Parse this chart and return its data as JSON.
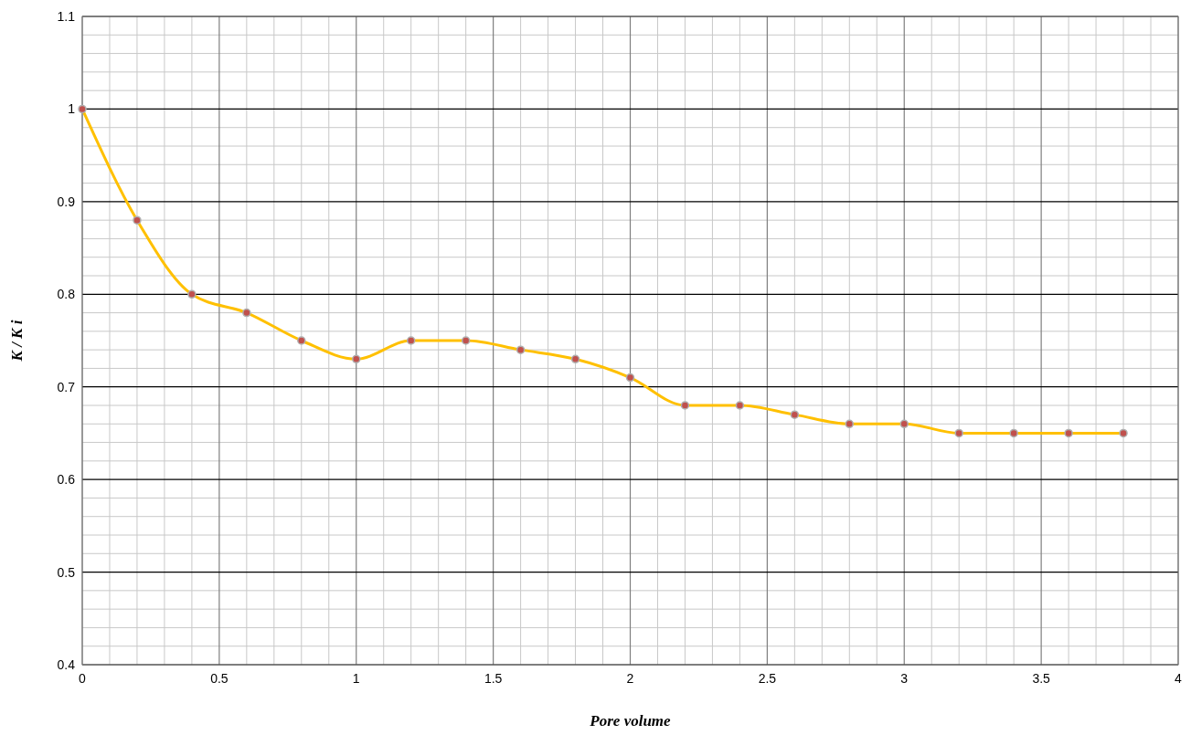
{
  "chart_data": {
    "type": "line",
    "xlabel": "Pore volume",
    "ylabel": "K / K i",
    "x": [
      0,
      0.2,
      0.4,
      0.6,
      0.8,
      1.0,
      1.2,
      1.4,
      1.6,
      1.8,
      2.0,
      2.2,
      2.4,
      2.6,
      2.8,
      3.0,
      3.2,
      3.4,
      3.6,
      3.8
    ],
    "series": [
      {
        "color": "#ffc000",
        "values": [
          1.0,
          0.88,
          0.8,
          0.78,
          0.75,
          0.73,
          0.75,
          0.75,
          0.74,
          0.73,
          0.71,
          0.68,
          0.68,
          0.67,
          0.66,
          0.66,
          0.65,
          0.65,
          0.65,
          0.65
        ]
      }
    ],
    "xlim": [
      0,
      4
    ],
    "xticks": [
      0,
      0.5,
      1,
      1.5,
      2,
      2.5,
      3,
      3.5,
      4
    ],
    "ylim": [
      0.4,
      1.1
    ],
    "yticks": [
      0.4,
      0.5,
      0.6,
      0.7,
      0.8,
      0.9,
      1,
      1.1
    ],
    "grid": true,
    "marker": "circle",
    "line_style": "solid"
  }
}
